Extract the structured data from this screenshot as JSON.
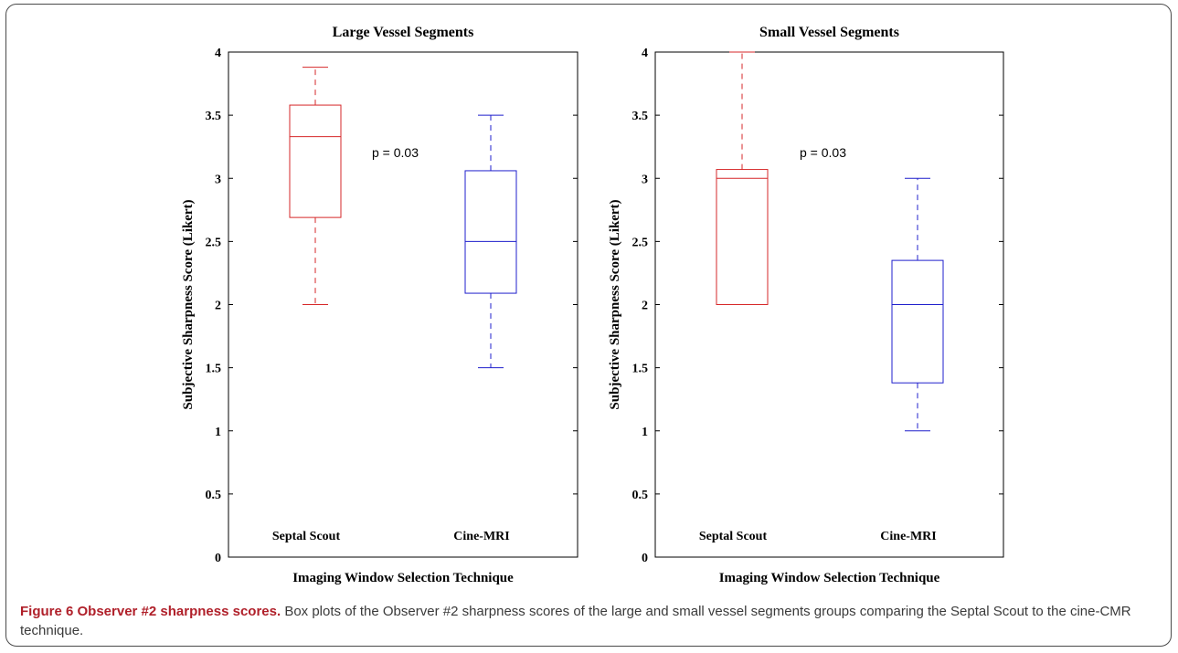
{
  "chart_data": [
    {
      "type": "box",
      "title": "Large Vessel Segments",
      "xlabel": "Imaging Window Selection Technique",
      "ylabel": "Subjective Sharpness Score (Likert)",
      "ylim": [
        0,
        4
      ],
      "yticks": [
        "0",
        "0.5",
        "1",
        "1.5",
        "2",
        "2.5",
        "3",
        "3.5",
        "4"
      ],
      "annotation": "p = 0.03",
      "categories": [
        "Septal Scout",
        "Cine-MRI"
      ],
      "boxes": [
        {
          "category": "Septal Scout",
          "color": "#d62728",
          "whisker_low": 2.0,
          "q1": 2.69,
          "median": 3.33,
          "q3": 3.58,
          "whisker_high": 3.88
        },
        {
          "category": "Cine-MRI",
          "color": "#1f1fcc",
          "whisker_low": 1.5,
          "q1": 2.09,
          "median": 2.5,
          "q3": 3.06,
          "whisker_high": 3.5
        }
      ]
    },
    {
      "type": "box",
      "title": "Small Vessel Segments",
      "xlabel": "Imaging Window Selection Technique",
      "ylabel": "Subjective Sharpness Score (Likert)",
      "ylim": [
        0,
        4
      ],
      "yticks": [
        "0",
        "0.5",
        "1",
        "1.5",
        "2",
        "2.5",
        "3",
        "3.5",
        "4"
      ],
      "annotation": "p = 0.03",
      "categories": [
        "Septal Scout",
        "Cine-MRI"
      ],
      "boxes": [
        {
          "category": "Septal Scout",
          "color": "#d62728",
          "whisker_low": 2.0,
          "q1": 2.0,
          "median": 3.0,
          "q3": 3.07,
          "whisker_high": 4.0
        },
        {
          "category": "Cine-MRI",
          "color": "#1f1fcc",
          "whisker_low": 1.0,
          "q1": 1.38,
          "median": 2.0,
          "q3": 2.35,
          "whisker_high": 3.0
        }
      ]
    }
  ],
  "caption": {
    "title": "Figure 6 Observer #2 sharpness scores.",
    "text": " Box plots of the Observer #2 sharpness scores of the large and small vessel segments groups comparing the Septal Scout to the cine-CMR technique."
  }
}
